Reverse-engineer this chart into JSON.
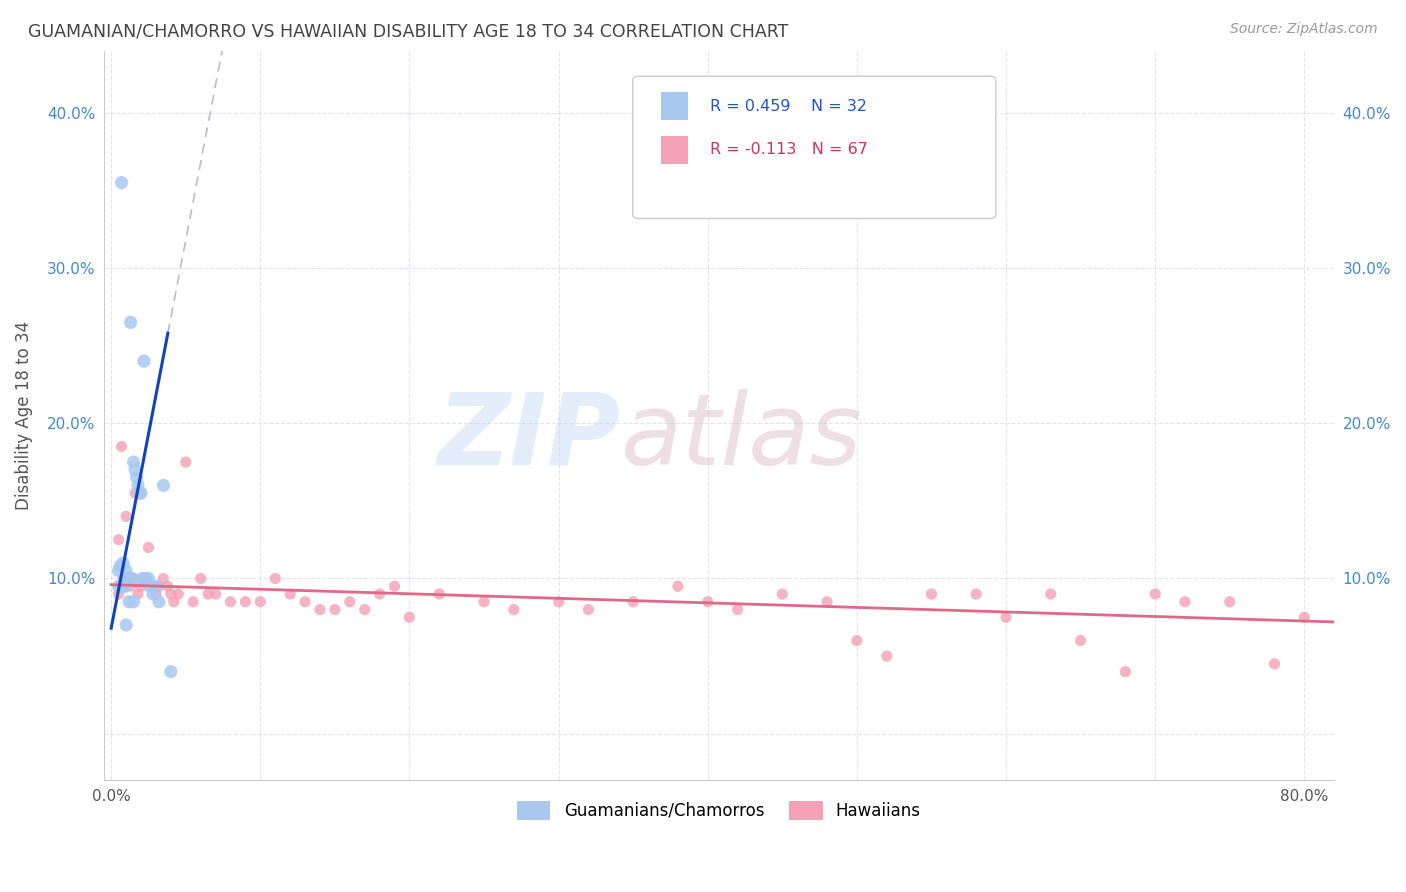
{
  "title": "GUAMANIAN/CHAMORRO VS HAWAIIAN DISABILITY AGE 18 TO 34 CORRELATION CHART",
  "source": "Source: ZipAtlas.com",
  "ylabel": "Disability Age 18 to 34",
  "xlim": [
    -0.005,
    0.82
  ],
  "ylim": [
    -0.03,
    0.44
  ],
  "legend_blue_label": "Guamanians/Chamorros",
  "legend_pink_label": "Hawaiians",
  "r_blue": "R = 0.459",
  "n_blue": "N = 32",
  "r_pink": "R = -0.113",
  "n_pink": "N = 67",
  "blue_color": "#a8c8f0",
  "pink_color": "#f4a0b5",
  "blue_line_color": "#1144bb",
  "pink_line_color": "#e06888",
  "trend_line_color": "#bbbbcc",
  "background_color": "#ffffff",
  "grid_color": "#dde0ee",
  "title_color": "#444444",
  "source_color": "#999999",
  "blue_scatter_x": [
    0.005,
    0.006,
    0.007,
    0.008,
    0.009,
    0.01,
    0.011,
    0.012,
    0.013,
    0.014,
    0.015,
    0.016,
    0.017,
    0.018,
    0.019,
    0.02,
    0.021,
    0.022,
    0.023,
    0.025,
    0.026,
    0.028,
    0.03,
    0.032,
    0.035,
    0.005,
    0.007,
    0.009,
    0.012,
    0.015,
    0.01,
    0.04
  ],
  "blue_scatter_y": [
    0.105,
    0.108,
    0.355,
    0.11,
    0.095,
    0.105,
    0.1,
    0.1,
    0.265,
    0.1,
    0.175,
    0.17,
    0.165,
    0.16,
    0.155,
    0.155,
    0.1,
    0.24,
    0.1,
    0.1,
    0.095,
    0.09,
    0.095,
    0.085,
    0.16,
    0.095,
    0.095,
    0.095,
    0.085,
    0.085,
    0.07,
    0.04
  ],
  "pink_scatter_x": [
    0.005,
    0.006,
    0.007,
    0.008,
    0.009,
    0.01,
    0.011,
    0.012,
    0.013,
    0.015,
    0.016,
    0.018,
    0.02,
    0.022,
    0.025,
    0.028,
    0.03,
    0.032,
    0.035,
    0.038,
    0.04,
    0.042,
    0.045,
    0.05,
    0.055,
    0.06,
    0.065,
    0.07,
    0.08,
    0.09,
    0.1,
    0.11,
    0.12,
    0.13,
    0.14,
    0.15,
    0.16,
    0.17,
    0.18,
    0.19,
    0.2,
    0.22,
    0.25,
    0.27,
    0.3,
    0.32,
    0.35,
    0.38,
    0.4,
    0.42,
    0.45,
    0.48,
    0.5,
    0.52,
    0.55,
    0.58,
    0.6,
    0.63,
    0.65,
    0.68,
    0.7,
    0.72,
    0.75,
    0.78,
    0.8,
    0.005,
    0.01
  ],
  "pink_scatter_y": [
    0.09,
    0.095,
    0.185,
    0.1,
    0.095,
    0.095,
    0.1,
    0.1,
    0.095,
    0.1,
    0.155,
    0.09,
    0.095,
    0.1,
    0.12,
    0.095,
    0.09,
    0.095,
    0.1,
    0.095,
    0.09,
    0.085,
    0.09,
    0.175,
    0.085,
    0.1,
    0.09,
    0.09,
    0.085,
    0.085,
    0.085,
    0.1,
    0.09,
    0.085,
    0.08,
    0.08,
    0.085,
    0.08,
    0.09,
    0.095,
    0.075,
    0.09,
    0.085,
    0.08,
    0.085,
    0.08,
    0.085,
    0.095,
    0.085,
    0.08,
    0.09,
    0.085,
    0.06,
    0.05,
    0.09,
    0.09,
    0.075,
    0.09,
    0.06,
    0.04,
    0.09,
    0.085,
    0.085,
    0.045,
    0.075,
    0.125,
    0.14
  ],
  "x_tick_pos": [
    0.0,
    0.1,
    0.2,
    0.3,
    0.4,
    0.5,
    0.6,
    0.7,
    0.8
  ],
  "x_tick_labels": [
    "0.0%",
    "",
    "",
    "",
    "",
    "",
    "",
    "",
    "80.0%"
  ],
  "y_tick_pos": [
    0.0,
    0.1,
    0.2,
    0.3,
    0.4
  ],
  "y_tick_labels": [
    "",
    "10.0%",
    "20.0%",
    "30.0%",
    "40.0%"
  ],
  "blue_line_x": [
    0.0,
    0.038
  ],
  "blue_line_y_intercept": 0.068,
  "blue_line_slope": 5.0,
  "dashed_line_x": [
    0.0,
    0.43
  ],
  "dashed_line_y_intercept": 0.068,
  "dashed_line_slope": 5.0,
  "pink_line_x": [
    0.0,
    0.82
  ],
  "pink_line_y_start": 0.096,
  "pink_line_y_end": 0.072
}
